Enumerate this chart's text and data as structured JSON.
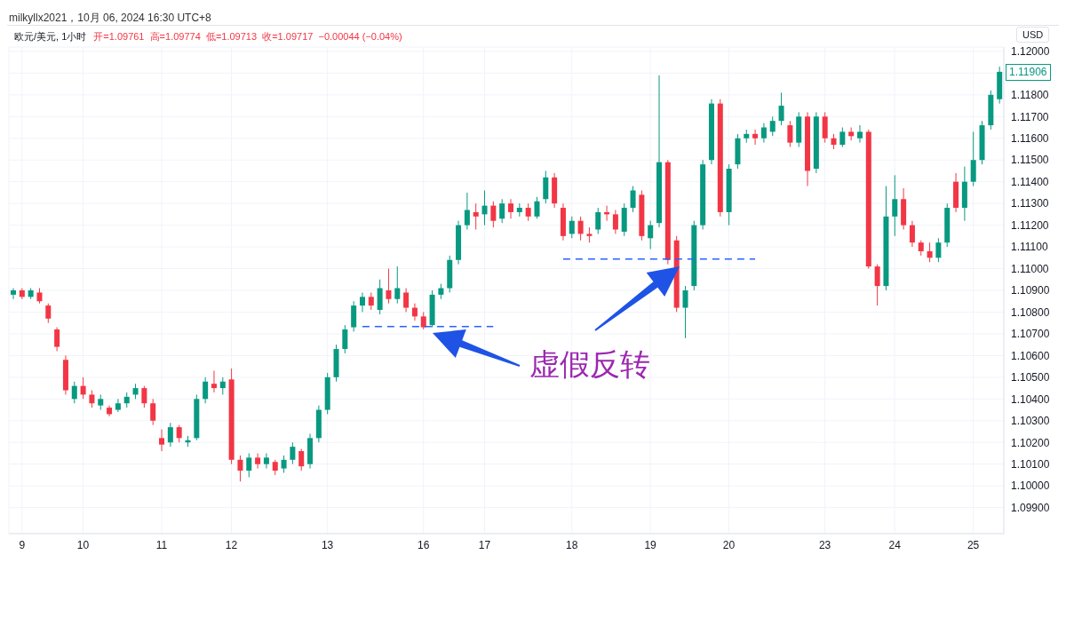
{
  "chart_data": {
    "type": "candlestick",
    "title": "欧元/美元, 1小时",
    "subtitle": "开=1.09761  高=1.09774  低=1.09713  收=1.09717  −0.00044 (−0.04%)",
    "ylabel": "USD",
    "annotations": [
      "milkyllx2021，10月 06, 2024 16:30 UTC+8",
      "虚假反转",
      "1.11906"
    ],
    "categories": [
      null,
      "9",
      null,
      null,
      null,
      null,
      null,
      null,
      "10",
      null,
      null,
      null,
      null,
      null,
      null,
      null,
      null,
      "11",
      null,
      null,
      null,
      null,
      null,
      null,
      null,
      "12",
      null,
      null,
      null,
      null,
      null,
      null,
      null,
      null,
      null,
      null,
      "13",
      null,
      null,
      null,
      null,
      null,
      null,
      null,
      null,
      null,
      null,
      "16",
      null,
      null,
      null,
      null,
      null,
      null,
      "17",
      null,
      null,
      null,
      null,
      null,
      null,
      null,
      null,
      null,
      "18",
      null,
      null,
      null,
      null,
      null,
      null,
      null,
      null,
      "19",
      null,
      null,
      null,
      null,
      null,
      null,
      null,
      null,
      "20",
      null,
      null,
      null,
      null,
      null,
      null,
      null,
      null,
      null,
      null,
      "23",
      null,
      null,
      null,
      null,
      null,
      null,
      null,
      "24",
      null,
      null,
      null,
      null,
      null,
      null,
      null,
      null,
      "25",
      null,
      null,
      null
    ],
    "ohlc": [
      [
        1.1088,
        1.1091,
        1.1086,
        1.109
      ],
      [
        1.109,
        1.1091,
        1.1086,
        1.1087
      ],
      [
        1.1087,
        1.1091,
        1.1086,
        1.109
      ],
      [
        1.1089,
        1.1091,
        1.1084,
        1.1085
      ],
      [
        1.1083,
        1.1084,
        1.1075,
        1.1077
      ],
      [
        1.1072,
        1.1073,
        1.1062,
        1.1064
      ],
      [
        1.1058,
        1.106,
        1.1042,
        1.1044
      ],
      [
        1.104,
        1.1048,
        1.1038,
        1.1046
      ],
      [
        1.1046,
        1.105,
        1.104,
        1.1042
      ],
      [
        1.1042,
        1.1044,
        1.1036,
        1.1038
      ],
      [
        1.1037,
        1.1042,
        1.1035,
        1.104
      ],
      [
        1.1036,
        1.1037,
        1.1032,
        1.1033
      ],
      [
        1.1035,
        1.104,
        1.1034,
        1.1038
      ],
      [
        1.1038,
        1.1043,
        1.1036,
        1.1041
      ],
      [
        1.1042,
        1.1047,
        1.104,
        1.1045
      ],
      [
        1.1045,
        1.1046,
        1.1036,
        1.1038
      ],
      [
        1.1038,
        1.104,
        1.1028,
        1.103
      ],
      [
        1.1022,
        1.1026,
        1.1016,
        1.1019
      ],
      [
        1.102,
        1.1029,
        1.1018,
        1.1027
      ],
      [
        1.1027,
        1.1028,
        1.102,
        1.1022
      ],
      [
        1.102,
        1.1023,
        1.1018,
        1.1021
      ],
      [
        1.1022,
        1.1042,
        1.1021,
        1.104
      ],
      [
        1.104,
        1.105,
        1.1038,
        1.1048
      ],
      [
        1.1047,
        1.1053,
        1.1043,
        1.1045
      ],
      [
        1.1045,
        1.105,
        1.1042,
        1.1048
      ],
      [
        1.1049,
        1.1054,
        1.101,
        1.1012
      ],
      [
        1.1012,
        1.1014,
        1.1002,
        1.1007
      ],
      [
        1.1007,
        1.1015,
        1.1004,
        1.1013
      ],
      [
        1.1013,
        1.1015,
        1.1008,
        1.101
      ],
      [
        1.101,
        1.1015,
        1.1008,
        1.1013
      ],
      [
        1.1011,
        1.1012,
        1.1005,
        1.1007
      ],
      [
        1.1008,
        1.1014,
        1.1006,
        1.1012
      ],
      [
        1.1012,
        1.102,
        1.101,
        1.1018
      ],
      [
        1.1016,
        1.1017,
        1.1007,
        1.1009
      ],
      [
        1.101,
        1.1024,
        1.1008,
        1.1022
      ],
      [
        1.1022,
        1.1037,
        1.102,
        1.1035
      ],
      [
        1.1035,
        1.1052,
        1.1033,
        1.105
      ],
      [
        1.105,
        1.1065,
        1.1048,
        1.1063
      ],
      [
        1.1063,
        1.1074,
        1.1061,
        1.1072
      ],
      [
        1.1073,
        1.1085,
        1.1071,
        1.1083
      ],
      [
        1.1083,
        1.1089,
        1.108,
        1.1087
      ],
      [
        1.1087,
        1.1089,
        1.1081,
        1.1083
      ],
      [
        1.1081,
        1.1095,
        1.1079,
        1.1091
      ],
      [
        1.109,
        1.11,
        1.1084,
        1.1086
      ],
      [
        1.1086,
        1.1101,
        1.1084,
        1.1091
      ],
      [
        1.1089,
        1.1091,
        1.108,
        1.1082
      ],
      [
        1.1082,
        1.1084,
        1.1076,
        1.1078
      ],
      [
        1.1078,
        1.108,
        1.1072,
        1.1073
      ],
      [
        1.1074,
        1.109,
        1.1073,
        1.1088
      ],
      [
        1.1088,
        1.1093,
        1.1086,
        1.1091
      ],
      [
        1.1091,
        1.1106,
        1.1089,
        1.1104
      ],
      [
        1.1104,
        1.1122,
        1.1102,
        1.112
      ],
      [
        1.112,
        1.1135,
        1.1118,
        1.1127
      ],
      [
        1.1126,
        1.113,
        1.1118,
        1.1124
      ],
      [
        1.1125,
        1.1136,
        1.112,
        1.1129
      ],
      [
        1.1129,
        1.1131,
        1.1119,
        1.1122
      ],
      [
        1.1123,
        1.1132,
        1.1121,
        1.113
      ],
      [
        1.113,
        1.1132,
        1.1123,
        1.1126
      ],
      [
        1.1126,
        1.113,
        1.1124,
        1.1128
      ],
      [
        1.1128,
        1.113,
        1.1122,
        1.1124
      ],
      [
        1.1124,
        1.1133,
        1.1123,
        1.1131
      ],
      [
        1.1132,
        1.1145,
        1.113,
        1.1142
      ],
      [
        1.1142,
        1.1144,
        1.1128,
        1.113
      ],
      [
        1.1128,
        1.113,
        1.1113,
        1.1115
      ],
      [
        1.1116,
        1.1124,
        1.1114,
        1.1122
      ],
      [
        1.1122,
        1.1124,
        1.1113,
        1.1116
      ],
      [
        1.1116,
        1.1119,
        1.1112,
        1.1115
      ],
      [
        1.1118,
        1.1128,
        1.1116,
        1.1126
      ],
      [
        1.1126,
        1.1129,
        1.1122,
        1.1125
      ],
      [
        1.1125,
        1.1127,
        1.1116,
        1.1118
      ],
      [
        1.1117,
        1.113,
        1.1115,
        1.1128
      ],
      [
        1.1128,
        1.1138,
        1.1126,
        1.1136
      ],
      [
        1.1134,
        1.1136,
        1.1113,
        1.1115
      ],
      [
        1.1114,
        1.1122,
        1.1109,
        1.112
      ],
      [
        1.1121,
        1.1189,
        1.1119,
        1.1149
      ],
      [
        1.1149,
        1.115,
        1.1102,
        1.1104
      ],
      [
        1.1113,
        1.1115,
        1.108,
        1.1082
      ],
      [
        1.1082,
        1.1092,
        1.1068,
        1.109
      ],
      [
        1.1092,
        1.1122,
        1.109,
        1.112
      ],
      [
        1.112,
        1.115,
        1.1118,
        1.1148
      ],
      [
        1.115,
        1.1178,
        1.1148,
        1.1176
      ],
      [
        1.1176,
        1.1178,
        1.1124,
        1.1126
      ],
      [
        1.1126,
        1.1148,
        1.112,
        1.1146
      ],
      [
        1.1148,
        1.1162,
        1.1146,
        1.116
      ],
      [
        1.116,
        1.1164,
        1.1158,
        1.1162
      ],
      [
        1.1162,
        1.1164,
        1.1157,
        1.116
      ],
      [
        1.116,
        1.1167,
        1.1158,
        1.1165
      ],
      [
        1.1163,
        1.117,
        1.1161,
        1.1168
      ],
      [
        1.1168,
        1.1181,
        1.1166,
        1.1175
      ],
      [
        1.1166,
        1.1168,
        1.1156,
        1.1158
      ],
      [
        1.1158,
        1.1172,
        1.1156,
        1.117
      ],
      [
        1.117,
        1.1172,
        1.1138,
        1.1145
      ],
      [
        1.1146,
        1.1172,
        1.1144,
        1.117
      ],
      [
        1.117,
        1.1172,
        1.1158,
        1.116
      ],
      [
        1.116,
        1.1162,
        1.1155,
        1.1157
      ],
      [
        1.1157,
        1.1165,
        1.1156,
        1.1163
      ],
      [
        1.1163,
        1.1165,
        1.1159,
        1.1161
      ],
      [
        1.116,
        1.1166,
        1.1158,
        1.1163
      ],
      [
        1.1163,
        1.1164,
        1.11,
        1.1101
      ],
      [
        1.1101,
        1.1102,
        1.1083,
        1.1092
      ],
      [
        1.1092,
        1.1138,
        1.109,
        1.1124
      ],
      [
        1.1124,
        1.1143,
        1.1115,
        1.1132
      ],
      [
        1.1132,
        1.1137,
        1.1118,
        1.112
      ],
      [
        1.112,
        1.1122,
        1.111,
        1.1112
      ],
      [
        1.1112,
        1.1113,
        1.1106,
        1.1108
      ],
      [
        1.1108,
        1.1112,
        1.1103,
        1.1105
      ],
      [
        1.1105,
        1.1114,
        1.1103,
        1.1112
      ],
      [
        1.1112,
        1.113,
        1.111,
        1.1128
      ],
      [
        1.114,
        1.1144,
        1.1126,
        1.1128
      ],
      [
        1.1128,
        1.1147,
        1.1122,
        1.114
      ],
      [
        1.114,
        1.1163,
        1.1138,
        1.115
      ],
      [
        1.115,
        1.1168,
        1.1148,
        1.1166
      ],
      [
        1.1166,
        1.1182,
        1.1164,
        1.118
      ],
      [
        1.1178,
        1.1193,
        1.1176,
        1.11906
      ]
    ],
    "colors": [
      "#089981",
      "#f23645",
      "#089981",
      "#f23645",
      "#f23645",
      "#f23645",
      "#f23645",
      "#089981",
      "#f23645",
      "#f23645",
      "#089981",
      "#f23645",
      "#089981",
      "#089981",
      "#089981",
      "#f23645",
      "#f23645",
      "#f23645",
      "#089981",
      "#f23645",
      "#089981",
      "#089981",
      "#089981",
      "#f23645",
      "#089981",
      "#f23645",
      "#f23645",
      "#089981",
      "#f23645",
      "#089981",
      "#f23645",
      "#089981",
      "#089981",
      "#f23645",
      "#089981",
      "#089981",
      "#089981",
      "#089981",
      "#089981",
      "#089981",
      "#089981",
      "#f23645",
      "#089981",
      "#f23645",
      "#089981",
      "#f23645",
      "#f23645",
      "#f23645",
      "#089981",
      "#089981",
      "#089981",
      "#089981",
      "#089981",
      "#f23645",
      "#089981",
      "#f23645",
      "#089981",
      "#f23645",
      "#089981",
      "#f23645",
      "#089981",
      "#089981",
      "#f23645",
      "#f23645",
      "#089981",
      "#f23645",
      "#f23645",
      "#089981",
      "#f23645",
      "#f23645",
      "#089981",
      "#089981",
      "#f23645",
      "#089981",
      "#089981",
      "#f23645",
      "#f23645",
      "#089981",
      "#089981",
      "#089981",
      "#089981",
      "#f23645",
      "#089981",
      "#089981",
      "#089981",
      "#f23645",
      "#089981",
      "#089981",
      "#089981",
      "#f23645",
      "#089981",
      "#f23645",
      "#089981",
      "#f23645",
      "#f23645",
      "#089981",
      "#f23645",
      "#089981",
      "#f23645",
      "#f23645",
      "#089981",
      "#089981",
      "#f23645",
      "#f23645",
      "#f23645",
      "#f23645",
      "#089981",
      "#089981",
      "#f23645",
      "#089981",
      "#089981",
      "#089981",
      "#089981",
      "#089981"
    ],
    "series": [
      {
        "type": "line",
        "color": "#2962ff",
        "line_style": "dashed",
        "values": [
          null,
          null,
          null,
          null,
          null,
          null,
          null,
          null,
          null,
          null,
          null,
          null,
          null,
          null,
          null,
          null,
          null,
          null,
          null,
          null,
          null,
          null,
          null,
          null,
          null,
          null,
          null,
          null,
          null,
          null,
          null,
          null,
          null,
          null,
          null,
          null,
          null,
          null,
          null,
          null,
          1.10733,
          null,
          null,
          null,
          null,
          null,
          null,
          null,
          null,
          null,
          null,
          null,
          null,
          null,
          null,
          1.10733,
          null,
          null,
          null,
          null,
          null,
          null,
          null,
          null,
          null,
          null,
          null,
          null,
          null,
          null,
          null,
          null,
          null,
          null,
          null,
          null,
          null,
          null,
          null,
          null,
          null,
          null,
          null,
          null,
          null,
          null,
          null,
          null,
          null,
          null,
          null,
          null,
          null,
          null,
          null,
          null,
          null,
          null,
          null,
          null,
          null,
          null,
          null,
          null,
          null,
          null,
          null,
          null,
          null,
          null,
          null,
          null,
          null,
          null
        ]
      },
      {
        "type": "line",
        "color": "#2962ff",
        "line_style": "dashed",
        "values": [
          null,
          null,
          null,
          null,
          null,
          null,
          null,
          null,
          null,
          null,
          null,
          null,
          null,
          null,
          null,
          null,
          null,
          null,
          null,
          null,
          null,
          null,
          null,
          null,
          null,
          null,
          null,
          null,
          null,
          null,
          null,
          null,
          null,
          null,
          null,
          null,
          null,
          null,
          null,
          null,
          null,
          null,
          null,
          null,
          null,
          null,
          null,
          null,
          null,
          null,
          null,
          null,
          null,
          null,
          null,
          null,
          null,
          null,
          null,
          null,
          null,
          null,
          null,
          1.11044,
          null,
          null,
          null,
          null,
          null,
          null,
          null,
          null,
          null,
          null,
          null,
          null,
          null,
          null,
          null,
          null,
          null,
          null,
          null,
          null,
          null,
          1.11044,
          null,
          null,
          null,
          null,
          null,
          null,
          null,
          null,
          null,
          null,
          null,
          null,
          null,
          null,
          null,
          null,
          null,
          null,
          null,
          null,
          null,
          null,
          null,
          null,
          null,
          null,
          null,
          null
        ]
      }
    ],
    "ylim": [
      1.0978,
      1.1202
    ],
    "yticks": [
      {
        "value": 1.099,
        "label": "1.09900"
      },
      {
        "value": 1.1,
        "label": "1.10000"
      },
      {
        "value": 1.101,
        "label": "1.10100"
      },
      {
        "value": 1.102,
        "label": "1.10200"
      },
      {
        "value": 1.103,
        "label": "1.10300"
      },
      {
        "value": 1.104,
        "label": "1.10400"
      },
      {
        "value": 1.105,
        "label": "1.10500"
      },
      {
        "value": 1.106,
        "label": "1.10600"
      },
      {
        "value": 1.107,
        "label": "1.10700"
      },
      {
        "value": 1.108,
        "label": "1.10800"
      },
      {
        "value": 1.109,
        "label": "1.10900"
      },
      {
        "value": 1.11,
        "label": "1.11000"
      },
      {
        "value": 1.111,
        "label": "1.11100"
      },
      {
        "value": 1.112,
        "label": "1.11200"
      },
      {
        "value": 1.113,
        "label": "1.11300"
      },
      {
        "value": 1.114,
        "label": "1.11400"
      },
      {
        "value": 1.115,
        "label": "1.11500"
      },
      {
        "value": 1.116,
        "label": "1.11600"
      },
      {
        "value": 1.117,
        "label": "1.11700"
      },
      {
        "value": 1.118,
        "label": "1.11800"
      },
      {
        "value": 1.119,
        "label": null
      },
      {
        "value": 1.12,
        "label": "1.12000"
      }
    ],
    "grid": true
  }
}
